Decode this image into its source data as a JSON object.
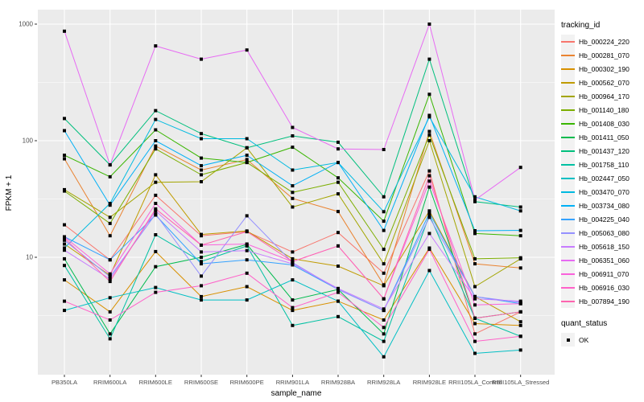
{
  "figure": {
    "y_axis": {
      "label": "FPKM + 1",
      "tick_labels": [
        "1000",
        "100",
        "10"
      ]
    },
    "x_axis": {
      "label": "sample_name"
    },
    "legend": {
      "tracking_title": "tracking_id",
      "quant_title": "quant_status",
      "quant_items": [
        {
          "label": "OK"
        }
      ]
    }
  },
  "colors": {
    "panel_bg": "#EBEBEB",
    "grid": "#FFFFFF",
    "tick_text": "#4D4D4D",
    "axis_title": "#000000",
    "point": "#000000",
    "legend_key_bg": "#F2F2F2"
  },
  "chart_data": {
    "type": "line",
    "title": "",
    "xlabel": "sample_name",
    "ylabel": "FPKM + 1",
    "y_scale": "log10",
    "ylim": [
      1,
      1100
    ],
    "y_major_ticks": [
      1000,
      100,
      10
    ],
    "y_minor_ticks": [
      316.2,
      31.62,
      3.162
    ],
    "grid": true,
    "legend_position": "right",
    "marker": "black-square",
    "categories": [
      "PB350LA",
      "RRIM600LA",
      "RRIM600LE",
      "RRIM600SE",
      "RRIM600PE",
      "RRIM901LA",
      "RRIM928BA",
      "RRIM928LA",
      "RRIM928LE",
      "RRII105LA_Control",
      "RRII105LA_Stressed"
    ],
    "series": [
      {
        "name": "Hb_000224_220",
        "color": "#F8766D",
        "values": [
          19,
          9.5,
          34,
          15.3,
          16.6,
          11.1,
          16.3,
          7.3,
          55,
          2.2,
          3.4
        ]
      },
      {
        "name": "Hb_000281_070",
        "color": "#EA8331",
        "values": [
          70,
          15.3,
          90,
          56,
          69,
          32,
          24.7,
          5.8,
          120,
          8.8,
          8.1
        ]
      },
      {
        "name": "Hb_000302_190",
        "color": "#D89000",
        "values": [
          6.4,
          3.4,
          11.2,
          4.6,
          5.6,
          3.5,
          4.2,
          2.9,
          12,
          2.7,
          2.6
        ]
      },
      {
        "name": "Hb_000562_070",
        "color": "#C09B00",
        "values": [
          13,
          7.0,
          51,
          15.7,
          16.8,
          9.7,
          8.4,
          5.7,
          25,
          4.6,
          2.8
        ]
      },
      {
        "name": "Hb_000964_170",
        "color": "#A3A500",
        "values": [
          38,
          22,
          44,
          44.5,
          87,
          27,
          35,
          8.8,
          100,
          5.6,
          9.7
        ]
      },
      {
        "name": "Hb_001140_180",
        "color": "#7CAE00",
        "values": [
          37,
          19.5,
          85,
          51,
          65,
          36,
          44,
          11.7,
          112,
          9.7,
          9.9
        ]
      },
      {
        "name": "Hb_001408_030",
        "color": "#39B600",
        "values": [
          75,
          49,
          124,
          71,
          65,
          88,
          48,
          20.4,
          250,
          16,
          15.3
        ]
      },
      {
        "name": "Hb_001411_050",
        "color": "#00BB4E",
        "values": [
          9.7,
          2.2,
          8.3,
          10,
          12.9,
          4.3,
          5.3,
          2.2,
          40,
          3.0,
          3.4
        ]
      },
      {
        "name": "Hb_001437_120",
        "color": "#00BF7D",
        "values": [
          155,
          62,
          181,
          115,
          87,
          110,
          97,
          33,
          500,
          30,
          27
        ]
      },
      {
        "name": "Hb_001758_110",
        "color": "#00C1A3",
        "values": [
          8.5,
          2.0,
          15.6,
          9.2,
          12.5,
          2.6,
          3.1,
          1.9,
          23,
          3.0,
          2.1
        ]
      },
      {
        "name": "Hb_002447_050",
        "color": "#00BFC4",
        "values": [
          3.5,
          4.5,
          5.5,
          4.3,
          4.3,
          6.4,
          4.2,
          1.4,
          7.7,
          1.5,
          1.6
        ]
      },
      {
        "name": "Hb_003470_070",
        "color": "#00BAE0",
        "values": [
          12,
          29,
          152,
          104,
          104,
          56,
          65,
          24.6,
          160,
          33,
          25
        ]
      },
      {
        "name": "Hb_003734_080",
        "color": "#00B0F6",
        "values": [
          122,
          28,
          100,
          61,
          75,
          41,
          65,
          17,
          165,
          16.9,
          17
        ]
      },
      {
        "name": "Hb_004225_040",
        "color": "#35A2FF",
        "values": [
          15,
          9.5,
          23,
          8.8,
          9.5,
          8.6,
          5.3,
          3.5,
          24,
          4.6,
          4.0
        ]
      },
      {
        "name": "Hb_005063_080",
        "color": "#9590FF",
        "values": [
          14,
          6.8,
          23.5,
          6.9,
          22.7,
          9.0,
          5.3,
          3.5,
          22,
          4.6,
          4.1
        ]
      },
      {
        "name": "Hb_005618_150",
        "color": "#C77CFF",
        "values": [
          11.5,
          6.5,
          25,
          11.1,
          11.4,
          8.8,
          5.4,
          3.6,
          16,
          4.4,
          4.2
        ]
      },
      {
        "name": "Hb_006351_060",
        "color": "#E76BF3",
        "values": [
          870,
          62,
          650,
          500,
          600,
          130,
          85,
          84,
          1000,
          31,
          59
        ]
      },
      {
        "name": "Hb_006911_070",
        "color": "#FA62DB",
        "values": [
          15,
          7.2,
          29,
          12.7,
          13,
          9.2,
          12.5,
          4.4,
          45,
          3.9,
          4.0
        ]
      },
      {
        "name": "Hb_006916_030",
        "color": "#FF61C9",
        "values": [
          4.2,
          2.9,
          5.0,
          5.7,
          7.3,
          3.7,
          5.0,
          2.5,
          11.7,
          1.9,
          2.1
        ]
      },
      {
        "name": "Hb_007894_190",
        "color": "#FF65B0",
        "values": [
          14.6,
          6.2,
          26,
          12.7,
          16.6,
          9.2,
          12.5,
          4.4,
          50,
          3.0,
          3.4
        ]
      }
    ]
  }
}
